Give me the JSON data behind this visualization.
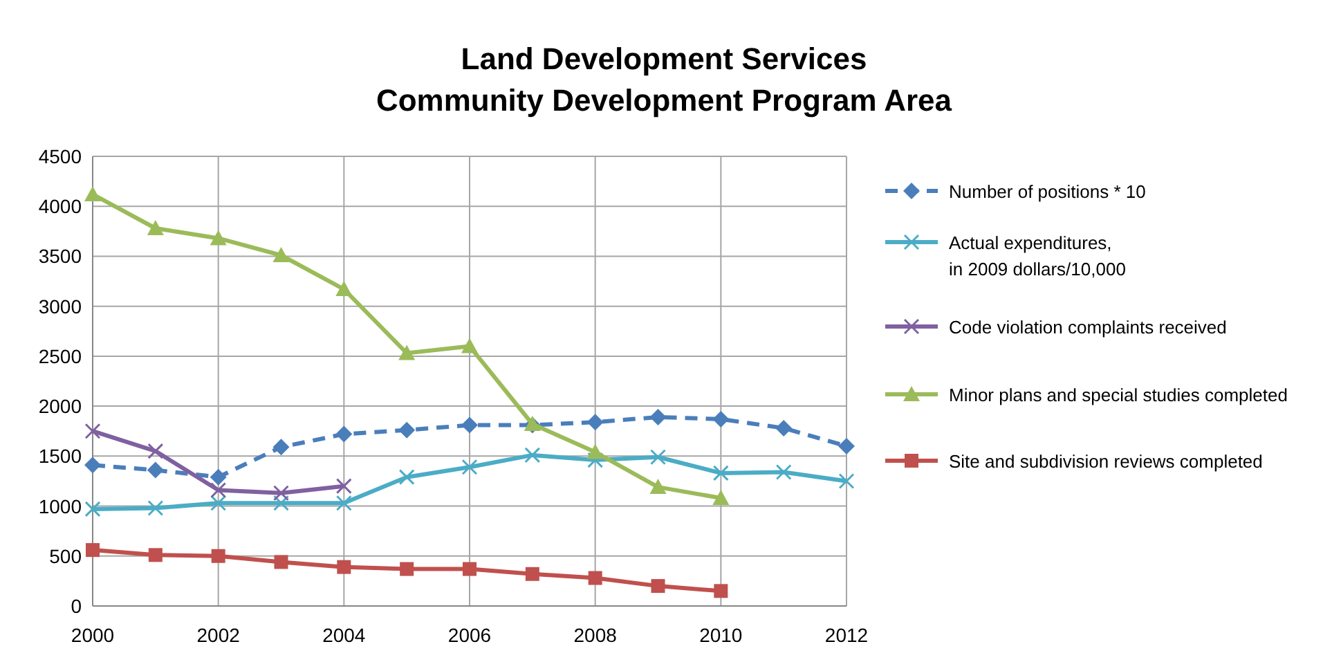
{
  "chart_data": {
    "type": "line",
    "title": "Land Development Services\nCommunity Development Program Area",
    "x": [
      2000,
      2001,
      2002,
      2003,
      2004,
      2005,
      2006,
      2007,
      2008,
      2009,
      2010,
      2011,
      2012
    ],
    "series": [
      {
        "name": "Number of positions * 10",
        "color": "#4a7ebb",
        "marker": "diamond",
        "line_style": "dashed",
        "values": [
          1410,
          1360,
          1290,
          1590,
          1720,
          1760,
          1810,
          1810,
          1840,
          1890,
          1870,
          1780,
          1600
        ]
      },
      {
        "name": "Actual expenditures, in 2009 dollars/10,000",
        "color": "#4bacc6",
        "marker": "cross",
        "values": [
          970,
          980,
          1030,
          1030,
          1030,
          1290,
          1390,
          1510,
          1460,
          1490,
          1330,
          1340,
          1250
        ]
      },
      {
        "name": "Code violation complaints received",
        "color": "#7f60a0",
        "marker": "cross",
        "values": [
          1750,
          1550,
          1160,
          1130,
          1200,
          null,
          null,
          null,
          null,
          null,
          null,
          null,
          null
        ]
      },
      {
        "name": "Minor plans and special studies completed",
        "color": "#9bbb59",
        "marker": "triangle",
        "values": [
          4120,
          3780,
          3680,
          3510,
          3170,
          2530,
          2600,
          1820,
          1540,
          1190,
          1080,
          null,
          null
        ]
      },
      {
        "name": "Site and subdivision reviews completed",
        "color": "#c0504d",
        "marker": "square",
        "values": [
          560,
          510,
          500,
          440,
          390,
          370,
          370,
          320,
          280,
          200,
          150,
          null,
          null
        ]
      }
    ],
    "xlim": [
      2000,
      2012
    ],
    "xticks": [
      2000,
      2002,
      2004,
      2006,
      2008,
      2010,
      2012
    ],
    "ylim": [
      0,
      4500
    ],
    "yticks": [
      0,
      500,
      1000,
      1500,
      2000,
      2500,
      3000,
      3500,
      4000,
      4500
    ],
    "grid": true,
    "legend": "right",
    "line_style": "solid"
  }
}
